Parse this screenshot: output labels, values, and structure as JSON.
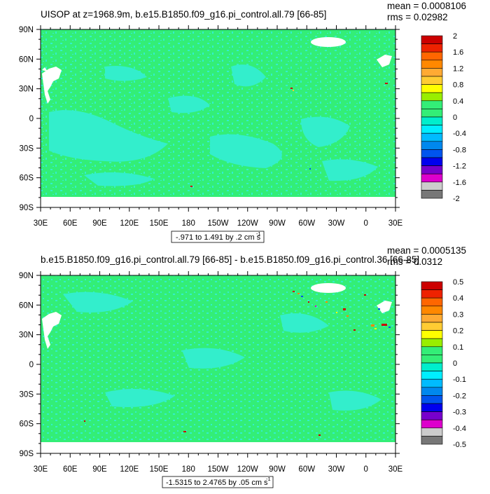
{
  "panels": [
    {
      "title": "UISOP at z=1968.9m, b.e15.B1850.f09_g16.pi_control.all.79 [66-85]",
      "mean": "mean = 0.0008106",
      "rms": "rms = 0.02982",
      "range_note": "-.971 to 1.491 by .2 cm s",
      "range_exp": "-1",
      "colorbar_labels": [
        "2",
        "1.6",
        "1.2",
        "0.8",
        "0.4",
        "0",
        "-0.4",
        "-0.8",
        "-1.2",
        "-1.6",
        "-2"
      ]
    },
    {
      "title": "b.e15.B1850.f09_g16.pi_control.all.79 [66-85] - b.e15.B1850.f09_g16.pi_control.36 [66-85]",
      "mean": "mean = 0.0005135",
      "rms": "rms = 0.0312",
      "range_note": "-1.5315 to 2.4765 by .05 cm s",
      "range_exp": "-1",
      "colorbar_labels": [
        "0.5",
        "0.4",
        "0.3",
        "0.2",
        "0.1",
        "0",
        "-0.1",
        "-0.2",
        "-0.3",
        "-0.4",
        "-0.5"
      ]
    }
  ],
  "axes": {
    "lat_labels": [
      "90N",
      "60N",
      "30N",
      "0",
      "30S",
      "60S",
      "90S"
    ],
    "lon_labels": [
      "30E",
      "60E",
      "90E",
      "120E",
      "150E",
      "180",
      "150W",
      "120W",
      "90W",
      "60W",
      "30W",
      "0",
      "30E"
    ]
  },
  "colors": {
    "ocean_mid": "#33ee77",
    "ocean_light": "#33eecc",
    "land": "#ffffff",
    "colorbar": [
      "#cc0000",
      "#ee2200",
      "#ff6600",
      "#ff8800",
      "#ffaa33",
      "#ffcc33",
      "#ffff00",
      "#99ee00",
      "#33ee77",
      "#33ee77",
      "#00eecc",
      "#00eeff",
      "#00bbff",
      "#0088ee",
      "#0055ee",
      "#0000ee",
      "#7700cc",
      "#dd00cc",
      "#cccccc",
      "#777777"
    ]
  }
}
